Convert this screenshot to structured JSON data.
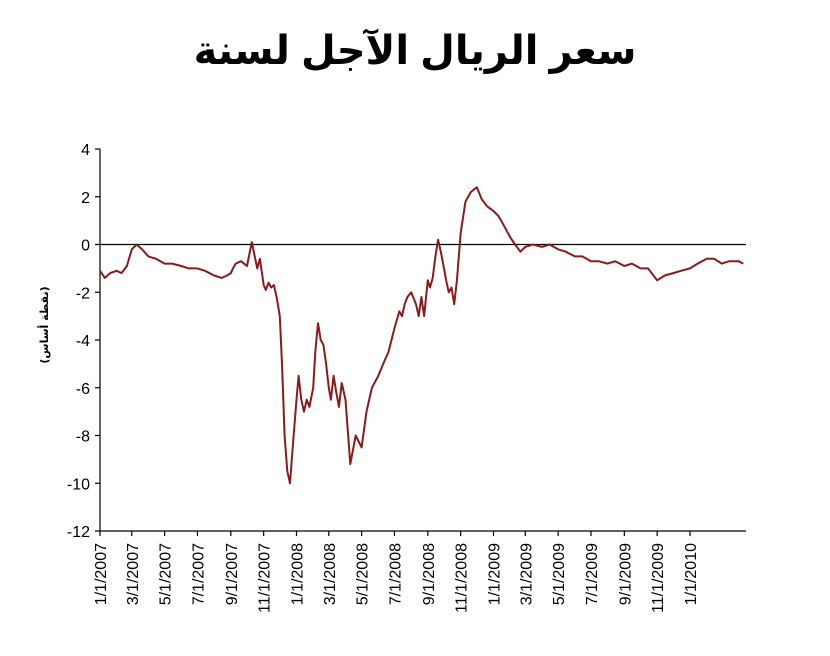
{
  "chart_data": {
    "type": "line",
    "title": "سعر الريال الآجل لسنة",
    "ylabel": "(نقطة أساس)",
    "xlabel": "",
    "ylim": [
      -12,
      4
    ],
    "yticks": [
      4,
      2,
      0,
      -2,
      -4,
      -6,
      -8,
      -10,
      -12
    ],
    "xlim": [
      "2007-01-01",
      "2010-04-15"
    ],
    "xticks": [
      "1/1/2007",
      "3/1/2007",
      "5/1/2007",
      "7/1/2007",
      "9/1/2007",
      "11/1/2007",
      "1/1/2008",
      "3/1/2008",
      "5/1/2008",
      "7/1/2008",
      "9/1/2008",
      "11/1/2008",
      "1/1/2009",
      "3/1/2009",
      "5/1/2009",
      "7/1/2009",
      "9/1/2009",
      "11/1/2009",
      "1/1/2010"
    ],
    "grid": false,
    "reference_line": 0,
    "line_color": "#8b1a1a",
    "series": [
      {
        "x": [
          "2007-01-01",
          "2007-01-10",
          "2007-01-20",
          "2007-02-01",
          "2007-02-10",
          "2007-02-20",
          "2007-03-01",
          "2007-03-10",
          "2007-03-20",
          "2007-04-01",
          "2007-04-15",
          "2007-05-01",
          "2007-05-15",
          "2007-06-01",
          "2007-06-15",
          "2007-07-01",
          "2007-07-15",
          "2007-08-01",
          "2007-08-15",
          "2007-08-25",
          "2007-09-01",
          "2007-09-05",
          "2007-09-10",
          "2007-09-20",
          "2007-10-01",
          "2007-10-10",
          "2007-10-20",
          "2007-10-25",
          "2007-11-01",
          "2007-11-05",
          "2007-11-10",
          "2007-11-15",
          "2007-11-20",
          "2007-11-25",
          "2007-12-01",
          "2007-12-05",
          "2007-12-10",
          "2007-12-15",
          "2007-12-20",
          "2007-12-25",
          "2008-01-01",
          "2008-01-05",
          "2008-01-10",
          "2008-01-15",
          "2008-01-20",
          "2008-01-25",
          "2008-02-01",
          "2008-02-05",
          "2008-02-10",
          "2008-02-15",
          "2008-02-20",
          "2008-02-25",
          "2008-03-01",
          "2008-03-05",
          "2008-03-10",
          "2008-03-15",
          "2008-03-20",
          "2008-03-25",
          "2008-04-01",
          "2008-04-10",
          "2008-04-20",
          "2008-05-01",
          "2008-05-10",
          "2008-05-20",
          "2008-06-01",
          "2008-06-10",
          "2008-06-20",
          "2008-07-01",
          "2008-07-10",
          "2008-07-15",
          "2008-07-20",
          "2008-07-25",
          "2008-08-01",
          "2008-08-10",
          "2008-08-15",
          "2008-08-20",
          "2008-08-25",
          "2008-09-01",
          "2008-09-05",
          "2008-09-10",
          "2008-09-15",
          "2008-09-20",
          "2008-09-25",
          "2008-10-01",
          "2008-10-05",
          "2008-10-10",
          "2008-10-15",
          "2008-10-20",
          "2008-10-25",
          "2008-11-01",
          "2008-11-10",
          "2008-11-20",
          "2008-12-01",
          "2008-12-10",
          "2008-12-20",
          "2009-01-01",
          "2009-01-10",
          "2009-01-20",
          "2009-02-01",
          "2009-02-10",
          "2009-02-20",
          "2009-03-01",
          "2009-03-15",
          "2009-04-01",
          "2009-04-15",
          "2009-05-01",
          "2009-05-15",
          "2009-06-01",
          "2009-06-15",
          "2009-07-01",
          "2009-07-15",
          "2009-08-01",
          "2009-08-15",
          "2009-09-01",
          "2009-09-15",
          "2009-10-01",
          "2009-10-15",
          "2009-11-01",
          "2009-11-15",
          "2009-12-01",
          "2009-12-15",
          "2010-01-01",
          "2010-01-15",
          "2010-02-01",
          "2010-02-15",
          "2010-03-01",
          "2010-03-15",
          "2010-04-01",
          "2010-04-10"
        ],
        "values": [
          -1.1,
          -1.4,
          -1.2,
          -1.1,
          -1.2,
          -0.9,
          -0.2,
          0.0,
          -0.2,
          -0.5,
          -0.6,
          -0.8,
          -0.8,
          -0.9,
          -1.0,
          -1.0,
          -1.1,
          -1.3,
          -1.4,
          -1.3,
          -1.2,
          -1.0,
          -0.8,
          -0.7,
          -0.9,
          0.1,
          -1.0,
          -0.6,
          -1.7,
          -1.9,
          -1.6,
          -1.8,
          -1.7,
          -2.2,
          -3.0,
          -5.0,
          -8.0,
          -9.5,
          -10.0,
          -8.5,
          -6.5,
          -5.5,
          -6.5,
          -7.0,
          -6.5,
          -6.8,
          -6.0,
          -4.5,
          -3.3,
          -4.0,
          -4.2,
          -5.0,
          -6.0,
          -6.5,
          -5.5,
          -6.2,
          -6.8,
          -5.8,
          -6.5,
          -9.2,
          -8.0,
          -8.5,
          -7.0,
          -6.0,
          -5.5,
          -5.0,
          -4.5,
          -3.5,
          -2.8,
          -3.0,
          -2.5,
          -2.2,
          -2.0,
          -2.5,
          -3.0,
          -2.2,
          -3.0,
          -1.5,
          -1.8,
          -1.4,
          -0.5,
          0.2,
          -0.3,
          -1.0,
          -1.5,
          -2.0,
          -1.8,
          -2.5,
          -1.5,
          0.5,
          1.8,
          2.2,
          2.4,
          1.9,
          1.6,
          1.4,
          1.2,
          0.8,
          0.3,
          0.0,
          -0.3,
          -0.1,
          0.0,
          -0.1,
          0.0,
          -0.2,
          -0.3,
          -0.5,
          -0.5,
          -0.7,
          -0.7,
          -0.8,
          -0.7,
          -0.9,
          -0.8,
          -1.0,
          -1.0,
          -1.5,
          -1.3,
          -1.2,
          -1.1,
          -1.0,
          -0.8,
          -0.6,
          -0.6,
          -0.8,
          -0.7,
          -0.7,
          -0.8
        ]
      }
    ]
  }
}
